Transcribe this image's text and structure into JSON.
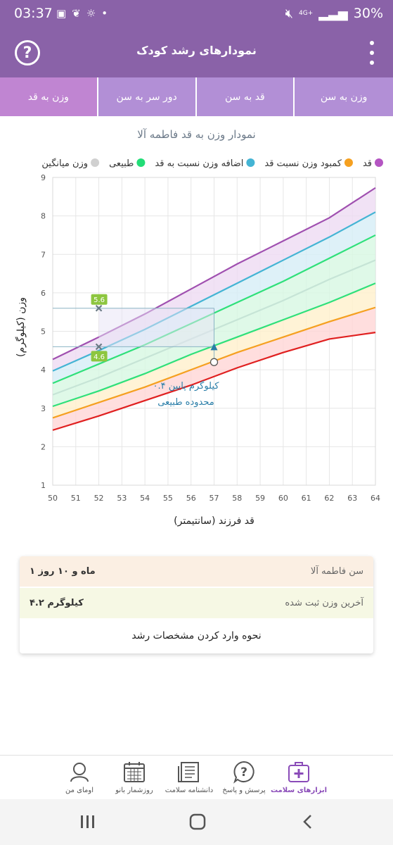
{
  "status_bar": {
    "time": "03:37",
    "battery": "30%",
    "network": "4G+"
  },
  "app_bar": {
    "title": "نمودارهای رشد کودک"
  },
  "tabs": [
    {
      "label": "وزن به سن",
      "active": false
    },
    {
      "label": "قد به سن",
      "active": false
    },
    {
      "label": "دور سر به سن",
      "active": false
    },
    {
      "label": "وزن به قد",
      "active": true
    }
  ],
  "chart_data": {
    "type": "line",
    "title": "نمودار وزن به قد فاطمه آلا",
    "xlabel": "قد فرزند (سانتیمتر)",
    "ylabel": "وزن (کیلوگرم)",
    "xlim": [
      50,
      64
    ],
    "ylim": [
      1,
      9
    ],
    "x_ticks": [
      "50",
      "51",
      "52",
      "53",
      "54",
      "55",
      "56",
      "57",
      "58",
      "59",
      "60",
      "61",
      "62",
      "63",
      "64"
    ],
    "y_ticks": [
      "1",
      "2",
      "3",
      "4",
      "5",
      "6",
      "7",
      "8",
      "9"
    ],
    "legend": [
      {
        "label": "قد",
        "color": "#b455c2"
      },
      {
        "label": "کمبود وزن نسبت قد",
        "color": "#f5a020"
      },
      {
        "label": "اضافه وزن نسبت به قد",
        "color": "#44b4d4"
      },
      {
        "label": "طبیعی",
        "color": "#22dd77"
      },
      {
        "label": "وزن میانگین",
        "color": "#d0d0d0"
      }
    ],
    "x": [
      50,
      52,
      54,
      56,
      58,
      60,
      62,
      64
    ],
    "series": [
      {
        "color": "#e02020",
        "values": [
          2.43,
          2.8,
          3.2,
          3.6,
          4.05,
          4.45,
          4.8,
          4.97
        ]
      },
      {
        "color": "#f5a020",
        "values": [
          2.75,
          3.15,
          3.55,
          4.0,
          4.45,
          4.85,
          5.25,
          5.62
        ]
      },
      {
        "color": "#2fe07a",
        "values": [
          3.05,
          3.45,
          3.9,
          4.4,
          4.85,
          5.3,
          5.75,
          6.25
        ]
      },
      {
        "color": "#c6e4d6",
        "values": [
          3.35,
          3.8,
          4.3,
          4.8,
          5.3,
          5.8,
          6.35,
          6.85
        ]
      },
      {
        "color": "#2fe07a",
        "values": [
          3.65,
          4.15,
          4.65,
          5.2,
          5.75,
          6.3,
          6.9,
          7.5
        ]
      },
      {
        "color": "#44b4d4",
        "values": [
          3.97,
          4.5,
          5.05,
          5.65,
          6.25,
          6.85,
          7.45,
          8.1
        ]
      },
      {
        "color": "#a050b0",
        "values": [
          4.27,
          4.85,
          5.45,
          6.1,
          6.75,
          7.35,
          7.95,
          8.73
        ]
      }
    ],
    "markers": [
      {
        "x": 52,
        "y": 5.6,
        "label": "5.6"
      },
      {
        "x": 52,
        "y": 4.6,
        "label": "4.6"
      }
    ],
    "child_point": {
      "x": 57,
      "y": 4.2
    },
    "arrow_target": {
      "x": 57,
      "y": 4.6
    },
    "annotation": {
      "line1": "۰.۴ کیلوگرم پایین",
      "line2": "محدوده طبیعی"
    }
  },
  "info": {
    "age_label": "سن فاطمه آلا",
    "age_value": "۱ ماه و ۱۰ روز",
    "weight_label": "آخرین وزن ثبت شده",
    "weight_value": "۴.۲ کیلوگرم",
    "help_link": "نحوه وارد کردن مشخصات رشد"
  },
  "bottom_nav": [
    {
      "label": "اومای من",
      "icon": "user-icon"
    },
    {
      "label": "روزشمار بانو",
      "icon": "calendar-icon"
    },
    {
      "label": "دانشنامه سلامت",
      "icon": "book-icon"
    },
    {
      "label": "پرسش و پاسخ",
      "icon": "question-icon"
    },
    {
      "label": "ابزارهای سلامت",
      "icon": "medical-kit-icon"
    }
  ]
}
